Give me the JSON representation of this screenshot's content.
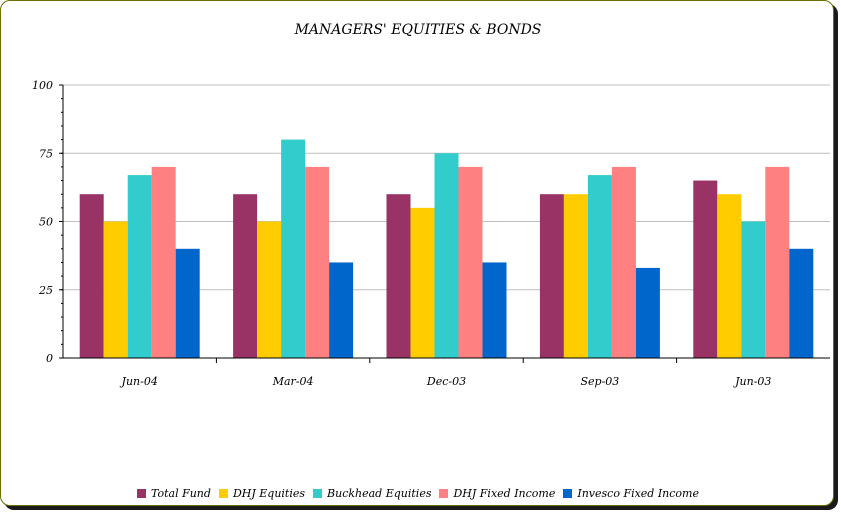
{
  "chart_data": {
    "type": "bar",
    "title": "MANAGERS' EQUITIES & BONDS",
    "xlabel": "",
    "ylabel": "",
    "ylim": [
      0,
      100
    ],
    "yticks": [
      "0",
      "25",
      "50",
      "75",
      "100"
    ],
    "categories": [
      "Jun-04",
      "Mar-04",
      "Dec-03",
      "Sep-03",
      "Jun-03"
    ],
    "grid": true,
    "legend_position": "bottom",
    "series": [
      {
        "name": "Total Fund",
        "color": "#993366",
        "values": [
          60,
          60,
          60,
          60,
          65
        ]
      },
      {
        "name": "DHJ Equities",
        "color": "#ffcc00",
        "values": [
          50,
          50,
          55,
          60,
          60
        ]
      },
      {
        "name": "Buckhead Equities",
        "color": "#33cccc",
        "values": [
          67,
          80,
          75,
          67,
          50
        ]
      },
      {
        "name": "DHJ Fixed Income",
        "color": "#ff8080",
        "values": [
          70,
          70,
          70,
          70,
          70
        ]
      },
      {
        "name": "Invesco Fixed Income",
        "color": "#0066cc",
        "values": [
          40,
          35,
          35,
          33,
          40
        ]
      }
    ]
  }
}
